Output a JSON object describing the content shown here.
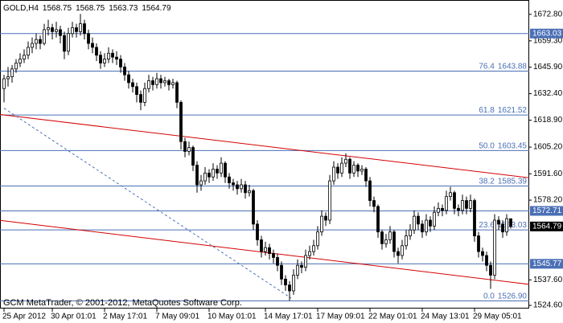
{
  "chart_data": {
    "type": "candlestick",
    "title": "GOLD,H4",
    "copyright": "GCM MetaTrader, © 2001-2012, MetaQuotes Software Corp.",
    "categories": [
      "25 Apr 2012",
      null,
      null,
      null,
      null,
      null,
      null,
      null,
      null,
      null,
      null,
      null,
      "30 Apr 01:01",
      null,
      null,
      null,
      null,
      null,
      null,
      null,
      null,
      null,
      null,
      null,
      null,
      "2 May 17:01",
      null,
      null,
      null,
      null,
      null,
      null,
      null,
      null,
      null,
      null,
      null,
      null,
      "7 May 09:01",
      null,
      null,
      null,
      null,
      null,
      null,
      null,
      null,
      null,
      null,
      null,
      null,
      "10 May 01:01",
      null,
      null,
      null,
      null,
      null,
      null,
      null,
      null,
      null,
      null,
      null,
      null,
      null,
      "14 May 17:01",
      null,
      null,
      null,
      null,
      null,
      null,
      null,
      null,
      null,
      null,
      null,
      null,
      "17 May 09:01",
      null,
      null,
      null,
      null,
      null,
      null,
      null,
      null,
      null,
      null,
      null,
      null,
      "22 May 01:01",
      null,
      null,
      null,
      null,
      null,
      null,
      null,
      null,
      null,
      null,
      null,
      null,
      "24 May 13:01",
      null,
      null,
      null,
      null,
      null,
      null,
      null,
      null,
      null,
      null,
      null,
      null,
      "29 May 05:01",
      null,
      null,
      null,
      null,
      null,
      null,
      null,
      null,
      null
    ],
    "ohlc": [
      [
        1635,
        1642,
        1628,
        1640
      ],
      [
        1640,
        1646,
        1636,
        1641
      ],
      [
        1641,
        1647,
        1638,
        1645
      ],
      [
        1645,
        1650,
        1643,
        1648
      ],
      [
        1648,
        1653,
        1646,
        1650
      ],
      [
        1650,
        1655,
        1648,
        1652
      ],
      [
        1652,
        1659,
        1650,
        1656
      ],
      [
        1656,
        1661,
        1653,
        1658
      ],
      [
        1658,
        1663,
        1655,
        1660
      ],
      [
        1660,
        1662,
        1655,
        1658
      ],
      [
        1658,
        1668,
        1657,
        1665
      ],
      [
        1665,
        1670,
        1662,
        1666
      ],
      [
        1666,
        1668,
        1660,
        1664
      ],
      [
        1664,
        1669,
        1661,
        1665
      ],
      [
        1665,
        1667,
        1658,
        1662
      ],
      [
        1662,
        1664,
        1650,
        1654
      ],
      [
        1654,
        1666,
        1652,
        1663
      ],
      [
        1663,
        1669,
        1661,
        1666
      ],
      [
        1666,
        1668,
        1661,
        1664
      ],
      [
        1664,
        1673,
        1662,
        1668
      ],
      [
        1668,
        1670,
        1660,
        1663
      ],
      [
        1663,
        1665,
        1655,
        1658
      ],
      [
        1658,
        1661,
        1653,
        1656
      ],
      [
        1656,
        1658,
        1649,
        1652
      ],
      [
        1652,
        1654,
        1645,
        1648
      ],
      [
        1648,
        1653,
        1646,
        1650
      ],
      [
        1650,
        1656,
        1648,
        1653
      ],
      [
        1653,
        1655,
        1648,
        1651
      ],
      [
        1651,
        1654,
        1647,
        1650
      ],
      [
        1650,
        1652,
        1643,
        1646
      ],
      [
        1646,
        1648,
        1639,
        1642
      ],
      [
        1642,
        1644,
        1635,
        1638
      ],
      [
        1638,
        1640,
        1633,
        1636
      ],
      [
        1636,
        1638,
        1628,
        1632
      ],
      [
        1632,
        1634,
        1624,
        1628
      ],
      [
        1628,
        1638,
        1626,
        1635
      ],
      [
        1635,
        1642,
        1633,
        1639
      ],
      [
        1639,
        1641,
        1634,
        1637
      ],
      [
        1637,
        1643,
        1635,
        1640
      ],
      [
        1640,
        1642,
        1635,
        1638
      ],
      [
        1638,
        1641,
        1636,
        1639
      ],
      [
        1639,
        1640,
        1634,
        1637
      ],
      [
        1637,
        1640,
        1635,
        1638
      ],
      [
        1638,
        1639,
        1625,
        1628
      ],
      [
        1628,
        1629,
        1604,
        1608
      ],
      [
        1608,
        1610,
        1600,
        1603
      ],
      [
        1603,
        1608,
        1601,
        1605
      ],
      [
        1605,
        1606,
        1593,
        1596
      ],
      [
        1596,
        1598,
        1582,
        1586
      ],
      [
        1586,
        1591,
        1583,
        1588
      ],
      [
        1588,
        1595,
        1586,
        1592
      ],
      [
        1592,
        1594,
        1587,
        1590
      ],
      [
        1590,
        1597,
        1588,
        1594
      ],
      [
        1594,
        1596,
        1589,
        1592
      ],
      [
        1592,
        1600,
        1590,
        1597
      ],
      [
        1597,
        1598,
        1587,
        1590
      ],
      [
        1590,
        1592,
        1584,
        1587
      ],
      [
        1587,
        1589,
        1583,
        1586
      ],
      [
        1586,
        1588,
        1581,
        1584
      ],
      [
        1584,
        1589,
        1582,
        1586
      ],
      [
        1586,
        1588,
        1579,
        1582
      ],
      [
        1582,
        1586,
        1580,
        1583
      ],
      [
        1583,
        1584,
        1563,
        1566
      ],
      [
        1566,
        1568,
        1555,
        1558
      ],
      [
        1558,
        1560,
        1549,
        1552
      ],
      [
        1552,
        1557,
        1550,
        1554
      ],
      [
        1554,
        1556,
        1548,
        1551
      ],
      [
        1551,
        1553,
        1546,
        1549
      ],
      [
        1549,
        1551,
        1542,
        1545
      ],
      [
        1545,
        1547,
        1535,
        1538
      ],
      [
        1538,
        1540,
        1532,
        1535
      ],
      [
        1535,
        1537,
        1527,
        1532
      ],
      [
        1532,
        1543,
        1530,
        1540
      ],
      [
        1540,
        1548,
        1538,
        1545
      ],
      [
        1545,
        1547,
        1541,
        1544
      ],
      [
        1544,
        1553,
        1542,
        1550
      ],
      [
        1550,
        1555,
        1548,
        1552
      ],
      [
        1552,
        1558,
        1550,
        1555
      ],
      [
        1555,
        1565,
        1553,
        1562
      ],
      [
        1562,
        1573,
        1560,
        1570
      ],
      [
        1570,
        1572,
        1565,
        1568
      ],
      [
        1568,
        1591,
        1566,
        1588
      ],
      [
        1588,
        1598,
        1586,
        1595
      ],
      [
        1595,
        1597,
        1589,
        1592
      ],
      [
        1592,
        1600,
        1590,
        1597
      ],
      [
        1597,
        1602,
        1595,
        1599
      ],
      [
        1599,
        1600,
        1589,
        1592
      ],
      [
        1592,
        1598,
        1590,
        1596
      ],
      [
        1596,
        1597,
        1590,
        1593
      ],
      [
        1593,
        1596,
        1591,
        1594
      ],
      [
        1594,
        1595,
        1585,
        1588
      ],
      [
        1588,
        1590,
        1575,
        1578
      ],
      [
        1578,
        1580,
        1572,
        1575
      ],
      [
        1575,
        1576,
        1559,
        1562
      ],
      [
        1562,
        1563,
        1553,
        1556
      ],
      [
        1556,
        1561,
        1554,
        1558
      ],
      [
        1558,
        1565,
        1556,
        1562
      ],
      [
        1562,
        1563,
        1549,
        1552
      ],
      [
        1552,
        1554,
        1546,
        1550
      ],
      [
        1550,
        1558,
        1548,
        1555
      ],
      [
        1555,
        1563,
        1553,
        1560
      ],
      [
        1560,
        1566,
        1558,
        1563
      ],
      [
        1563,
        1573,
        1561,
        1570
      ],
      [
        1570,
        1572,
        1563,
        1566
      ],
      [
        1566,
        1568,
        1559,
        1562
      ],
      [
        1562,
        1571,
        1560,
        1568
      ],
      [
        1568,
        1570,
        1562,
        1565
      ],
      [
        1565,
        1575,
        1563,
        1572
      ],
      [
        1572,
        1577,
        1570,
        1574
      ],
      [
        1574,
        1576,
        1570,
        1573
      ],
      [
        1573,
        1583,
        1571,
        1580
      ],
      [
        1580,
        1585,
        1578,
        1582
      ],
      [
        1582,
        1583,
        1571,
        1574
      ],
      [
        1574,
        1576,
        1570,
        1573
      ],
      [
        1573,
        1581,
        1571,
        1578
      ],
      [
        1578,
        1580,
        1571,
        1574
      ],
      [
        1574,
        1581,
        1572,
        1578
      ],
      [
        1578,
        1579,
        1557,
        1560
      ],
      [
        1560,
        1562,
        1549,
        1552
      ],
      [
        1552,
        1554,
        1547,
        1550
      ],
      [
        1550,
        1552,
        1542,
        1545
      ],
      [
        1545,
        1547,
        1533,
        1540
      ],
      [
        1540,
        1571,
        1538,
        1568
      ],
      [
        1568,
        1570,
        1563,
        1566
      ],
      [
        1566,
        1568,
        1559,
        1562
      ],
      [
        1562,
        1571,
        1560,
        1568.75
      ],
      [
        1568.75,
        1568.75,
        1563.73,
        1564.79
      ]
    ],
    "ylim": [
      1523,
      1680.1
    ],
    "yticks": [
      {
        "value": 1672.8,
        "label": "1672.80"
      },
      {
        "value": 1659.3,
        "label": "1659.30"
      },
      {
        "value": 1645.9,
        "label": "1645.90"
      },
      {
        "value": 1632.4,
        "label": "1632.40"
      },
      {
        "value": 1618.9,
        "label": "1618.90"
      },
      {
        "value": 1605.2,
        "label": "1605.20"
      },
      {
        "value": 1591.6,
        "label": "1591.60"
      },
      {
        "value": 1578.2,
        "label": "1578.20"
      },
      {
        "value": 1537.6,
        "label": "1537.60"
      },
      {
        "value": 1524.6,
        "label": "1524.60"
      }
    ],
    "hlines": [
      1663.03,
      1572.71,
      1545.77
    ],
    "fibo": [
      {
        "ratio": "0.0",
        "price": {
          "value": 1526.9,
          "label": "1526.90"
        }
      },
      {
        "ratio": "23.6",
        "price": 1563.03
      },
      {
        "ratio": "38.2",
        "price": 1585.39
      },
      {
        "ratio": "50.0",
        "price": 1603.45
      },
      {
        "ratio": "61.8",
        "price": 1621.52
      },
      {
        "ratio": "76.4",
        "price": 1643.88
      }
    ],
    "trendlines": [
      {
        "x": [
          -1,
          131
        ],
        "y": [
          1621.8,
          1589.5
        ],
        "color": "#d40000",
        "dashed": false
      },
      {
        "x": [
          -1,
          131
        ],
        "y": [
          1567.9,
          1535.2
        ],
        "color": "#d40000",
        "dashed": false
      },
      {
        "x": [
          0,
          71.4
        ],
        "y": [
          1625,
          1528.3
        ],
        "color": "#4a6fb5",
        "dashed": true
      }
    ],
    "level_color": "#4a6fb5",
    "bull_color": "#ffffff",
    "bear_color": "#000000"
  }
}
